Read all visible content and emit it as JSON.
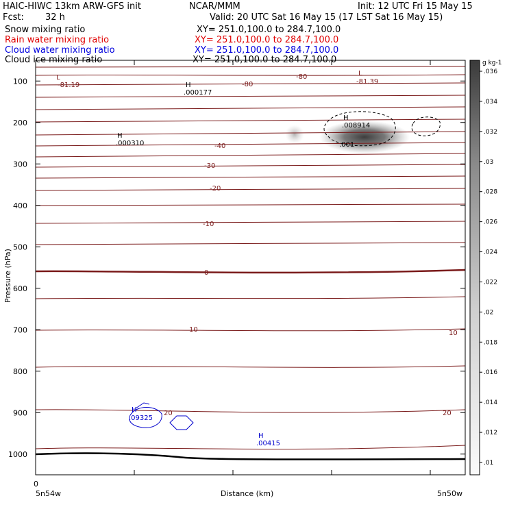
{
  "header": {
    "model": "HAIC-HIWC 13km ARW-GFS init",
    "org": "NCAR/MMM",
    "init": "Init: 12 UTC Fri 15 May 15",
    "fcst_label": "Fcst:",
    "fcst_value": "32 h",
    "valid": "Valid: 20 UTC Sat 16 May 15 (17 LST Sat 16 May 15)"
  },
  "fields": [
    {
      "name": "Snow mixing ratio",
      "xy": "XY= 251.0,100.0 to 284.7,100.0",
      "color": "#000000"
    },
    {
      "name": "Rain water mixing ratio",
      "xy": "XY= 251.0,100.0 to 284.7,100.0",
      "color": "#e00000"
    },
    {
      "name": "Cloud water mixing ratio",
      "xy": "XY= 251.0,100.0 to 284.7,100.0",
      "color": "#0000dd"
    },
    {
      "name": "Cloud ice mixing ratio",
      "xy": "XY= 251.0,100.0 to 284.7,100.0",
      "color": "#000000"
    }
  ],
  "chart_data": {
    "type": "contour cross-section",
    "xlabel": "Distance (km)",
    "ylabel": "Pressure (hPa)",
    "x_start_label": "5n54w",
    "x_end_label": "5n50w",
    "x_zero_label": "0",
    "ylim": [
      1050,
      50
    ],
    "yticks": [
      100,
      200,
      300,
      400,
      500,
      600,
      700,
      800,
      900,
      1000
    ],
    "colorbar": {
      "unit": "g kg-1",
      "ticks": [
        ".01",
        ".012",
        ".014",
        ".016",
        ".018",
        ".02",
        ".022",
        ".024",
        ".026",
        ".028",
        ".03",
        ".032",
        ".034",
        ".036"
      ]
    },
    "temperature_contour_labels": [
      "-80",
      "-80",
      "-40",
      "-30",
      "-20",
      "-10",
      "0",
      "10",
      "10",
      "20",
      "20"
    ],
    "extrema_labels": [
      {
        "type": "L",
        "value": "-81.19",
        "color": "#8b1a1a"
      },
      {
        "type": "L",
        "value": "-81.39",
        "color": "#8b1a1a"
      },
      {
        "type": "H",
        "value": ".000177",
        "color": "#000000"
      },
      {
        "type": "H",
        "value": ".000310",
        "color": "#000000"
      },
      {
        "type": "H",
        "value": ".008914",
        "color": "#000000"
      },
      {
        "type": "H",
        "value": ".09325",
        "color": "#0000cc"
      },
      {
        "type": "H",
        "value": ".00415",
        "color": "#0000cc"
      }
    ],
    "ice_contour_label": ".001"
  }
}
